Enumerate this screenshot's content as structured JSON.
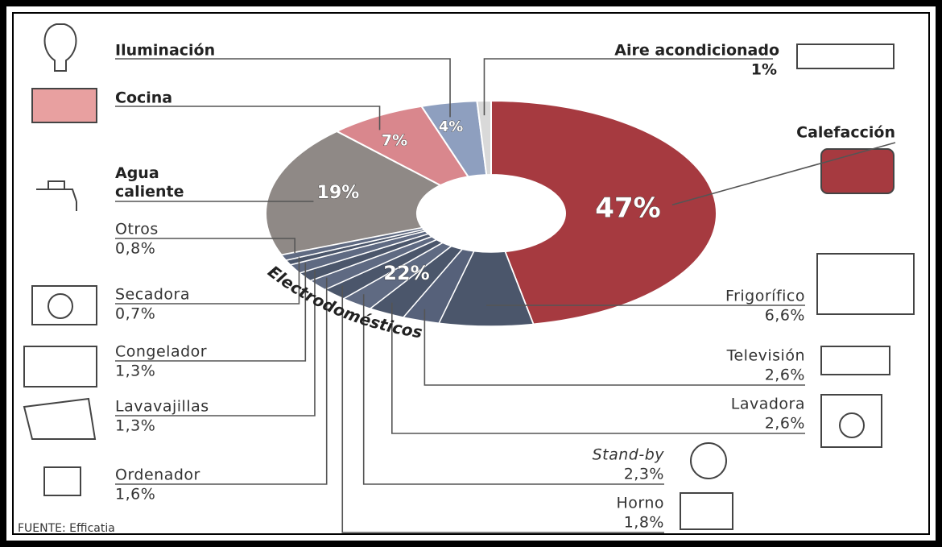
{
  "chart_data": {
    "type": "pie",
    "donut": true,
    "categories": [
      "Calefacción",
      "Electrodomésticos",
      "Agua caliente",
      "Cocina",
      "Iluminación",
      "Aire acondicionado"
    ],
    "values": [
      47,
      22,
      19,
      7,
      4,
      1
    ],
    "value_labels": [
      "47%",
      "22%",
      "19%",
      "7%",
      "4%",
      "1%"
    ],
    "colors": [
      "#a63a40",
      "#505b70",
      "#8f8986",
      "#d9878d",
      "#8e9fbf",
      "#d9d9d9"
    ],
    "breakdown": {
      "parent": "Electrodomésticos",
      "categories": [
        "Frigorífico",
        "Televisión",
        "Lavadora",
        "Stand-by",
        "Horno",
        "Ordenador",
        "Lavavajillas",
        "Congelador",
        "Secadora",
        "Otros"
      ],
      "values": [
        6.6,
        2.6,
        2.6,
        2.3,
        1.8,
        1.6,
        1.3,
        1.3,
        0.7,
        0.8
      ],
      "value_labels": [
        "6,6%",
        "2,6%",
        "2,6%",
        "2,3%",
        "1,8%",
        "1,6%",
        "1,3%",
        "1,3%",
        "0,7%",
        "0,8%"
      ],
      "colors": [
        "#4b566b",
        "#56617a",
        "#4b566b",
        "#5f6a82",
        "#4b566b",
        "#5f6a82",
        "#4b566b",
        "#5f6a82",
        "#4b566b",
        "#5f6a82"
      ]
    },
    "source": "FUENTE: Efficatia"
  }
}
